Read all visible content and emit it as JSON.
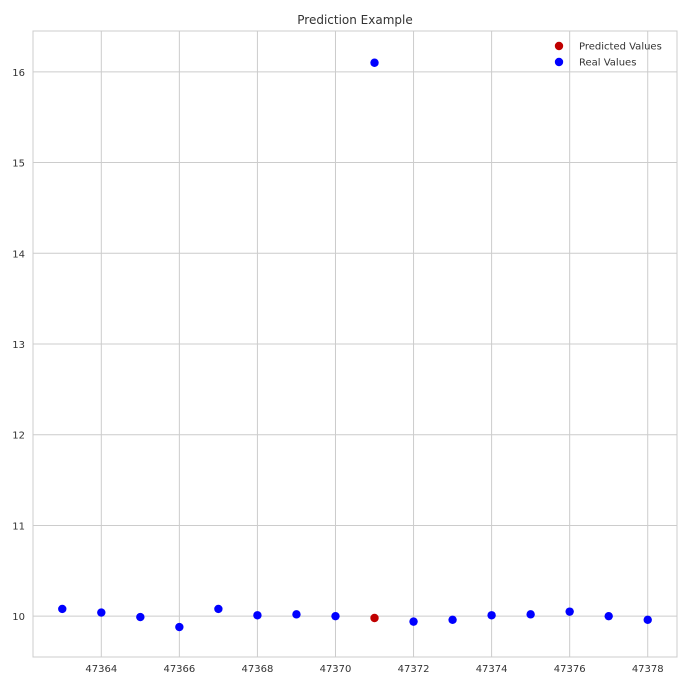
{
  "chart_data": {
    "type": "scatter",
    "title": "Prediction Example",
    "xlabel": "",
    "ylabel": "",
    "xlim": [
      47362.25,
      47378.75
    ],
    "ylim": [
      9.55,
      16.45
    ],
    "xticks": [
      47364,
      47366,
      47368,
      47370,
      47372,
      47374,
      47376,
      47378
    ],
    "yticks": [
      10,
      11,
      12,
      13,
      14,
      15,
      16
    ],
    "grid": true,
    "legend_position": "top-right",
    "series": [
      {
        "name": "Predicted Values",
        "color": "#c00000",
        "points": [
          {
            "x": 47371,
            "y": 9.98
          }
        ]
      },
      {
        "name": "Real Values",
        "color": "#0000ff",
        "points": [
          {
            "x": 47363,
            "y": 10.08
          },
          {
            "x": 47364,
            "y": 10.04
          },
          {
            "x": 47365,
            "y": 9.99
          },
          {
            "x": 47366,
            "y": 9.88
          },
          {
            "x": 47367,
            "y": 10.08
          },
          {
            "x": 47368,
            "y": 10.01
          },
          {
            "x": 47369,
            "y": 10.02
          },
          {
            "x": 47370,
            "y": 10.0
          },
          {
            "x": 47371,
            "y": 16.1
          },
          {
            "x": 47372,
            "y": 9.94
          },
          {
            "x": 47373,
            "y": 9.96
          },
          {
            "x": 47374,
            "y": 10.01
          },
          {
            "x": 47375,
            "y": 10.02
          },
          {
            "x": 47376,
            "y": 10.05
          },
          {
            "x": 47377,
            "y": 10.0
          },
          {
            "x": 47378,
            "y": 9.96
          }
        ]
      }
    ]
  }
}
